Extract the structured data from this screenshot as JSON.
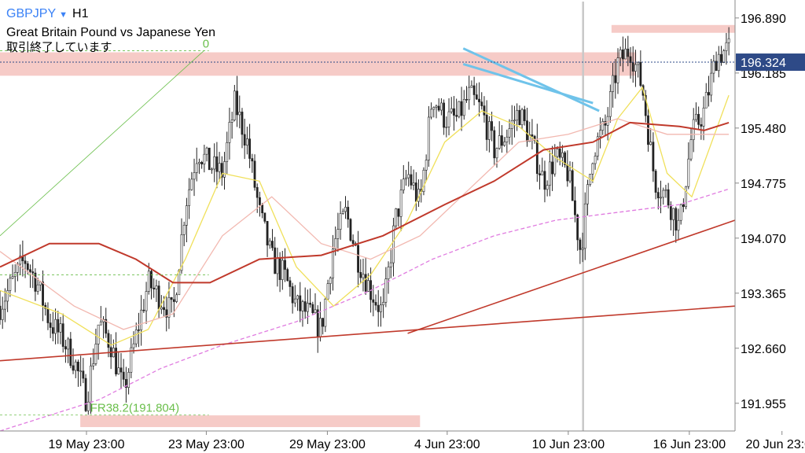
{
  "header": {
    "symbol": "GBPJPY",
    "symbol_menu_icon": "triangle-down-icon",
    "timeframe": "H1",
    "description": "Great Britain Pound vs Japanese Yen",
    "market_status": "取引終了しています"
  },
  "colors": {
    "background": "#ffffff",
    "candle": "#222222",
    "ma_fast": "#f0e05a",
    "ma_mid": "#f2b8b0",
    "ma_slow": "#c0392b",
    "ma_long": "#e07ce0",
    "trendline": "#c0392b",
    "channel": "#6fc3ea",
    "zone": "#f4c2bd",
    "fib": "#6abf4b",
    "price_label": "#2e4a87"
  },
  "chart_data": {
    "type": "candlestick",
    "ylim": [
      191.6,
      197.1
    ],
    "y_ticks": [
      "196.890",
      "196.185",
      "195.480",
      "194.775",
      "194.070",
      "193.365",
      "192.660",
      "191.955"
    ],
    "x_ticks": [
      "19 May 23:00",
      "23 May 23:00",
      "29 May 23:00",
      "4 Jun 23:00",
      "10 Jun 23:00",
      "16 Jun 23:00",
      "20 Jun 23:00"
    ],
    "current_price": "196.324",
    "close_path": [
      [
        0,
        193.2
      ],
      [
        2,
        193.8
      ],
      [
        3,
        193.5
      ],
      [
        4,
        193.0
      ],
      [
        5,
        192.8
      ],
      [
        6,
        192.5
      ],
      [
        7,
        192.0
      ],
      [
        8,
        193.0
      ],
      [
        9,
        192.7
      ],
      [
        10,
        192.1
      ],
      [
        11,
        192.8
      ],
      [
        12,
        193.5
      ],
      [
        13,
        193.3
      ],
      [
        14,
        193.1
      ],
      [
        15,
        194.5
      ],
      [
        16,
        195.2
      ],
      [
        17,
        195.0
      ],
      [
        18,
        194.9
      ],
      [
        19,
        195.8
      ],
      [
        20,
        195.3
      ],
      [
        21,
        194.4
      ],
      [
        22,
        193.8
      ],
      [
        23,
        193.6
      ],
      [
        24,
        193.2
      ],
      [
        25,
        193.1
      ],
      [
        26,
        192.9
      ],
      [
        27,
        194.0
      ],
      [
        28,
        194.4
      ],
      [
        29,
        193.8
      ],
      [
        30,
        193.4
      ],
      [
        31,
        193.1
      ],
      [
        32,
        194.3
      ],
      [
        33,
        194.9
      ],
      [
        34,
        194.5
      ],
      [
        35,
        195.9
      ],
      [
        36,
        195.6
      ],
      [
        37,
        195.6
      ],
      [
        38,
        195.9
      ],
      [
        39,
        195.7
      ],
      [
        40,
        195.2
      ],
      [
        41,
        195.4
      ],
      [
        42,
        195.7
      ],
      [
        43,
        195.3
      ],
      [
        44,
        194.8
      ],
      [
        45,
        195.1
      ],
      [
        46,
        194.9
      ],
      [
        47,
        193.9
      ],
      [
        48,
        195.2
      ],
      [
        49,
        195.5
      ],
      [
        50,
        196.3
      ],
      [
        51,
        196.5
      ],
      [
        52,
        196.0
      ],
      [
        53,
        194.8
      ],
      [
        54,
        194.6
      ],
      [
        55,
        194.2
      ],
      [
        56,
        195.4
      ],
      [
        57,
        195.7
      ],
      [
        58,
        196.4
      ],
      [
        59,
        196.5
      ]
    ],
    "moving_averages": [
      {
        "key": "ma_fast",
        "values": [
          [
            0,
            193.4
          ],
          [
            5,
            193.1
          ],
          [
            9,
            192.7
          ],
          [
            12,
            192.9
          ],
          [
            15,
            193.8
          ],
          [
            18,
            194.9
          ],
          [
            21,
            194.8
          ],
          [
            24,
            193.7
          ],
          [
            27,
            193.2
          ],
          [
            30,
            193.6
          ],
          [
            33,
            194.3
          ],
          [
            36,
            195.3
          ],
          [
            39,
            195.7
          ],
          [
            42,
            195.5
          ],
          [
            45,
            195.1
          ],
          [
            48,
            194.8
          ],
          [
            50,
            195.6
          ],
          [
            52,
            196.0
          ],
          [
            54,
            194.9
          ],
          [
            56,
            194.6
          ],
          [
            59,
            195.9
          ]
        ]
      },
      {
        "key": "ma_mid",
        "values": [
          [
            0,
            193.9
          ],
          [
            6,
            193.2
          ],
          [
            10,
            192.9
          ],
          [
            14,
            193.1
          ],
          [
            18,
            194.1
          ],
          [
            22,
            194.6
          ],
          [
            26,
            194.0
          ],
          [
            30,
            193.8
          ],
          [
            34,
            194.1
          ],
          [
            38,
            194.7
          ],
          [
            42,
            195.3
          ],
          [
            46,
            195.4
          ],
          [
            50,
            195.6
          ],
          [
            54,
            195.4
          ],
          [
            59,
            195.4
          ]
        ]
      },
      {
        "key": "ma_slow",
        "values": [
          [
            0,
            193.7
          ],
          [
            4,
            194.0
          ],
          [
            8,
            194.0
          ],
          [
            11,
            193.8
          ],
          [
            14,
            193.5
          ],
          [
            17,
            193.5
          ],
          [
            21,
            193.8
          ],
          [
            26,
            193.85
          ],
          [
            31,
            194.1
          ],
          [
            36,
            194.5
          ],
          [
            40,
            194.8
          ],
          [
            44,
            195.2
          ],
          [
            48,
            195.3
          ],
          [
            51,
            195.55
          ],
          [
            55,
            195.5
          ],
          [
            57,
            195.45
          ],
          [
            59,
            195.55
          ]
        ]
      },
      {
        "key": "ma_long",
        "values": [
          [
            0,
            191.6
          ],
          [
            8,
            192.0
          ],
          [
            13,
            192.4
          ],
          [
            18,
            192.7
          ],
          [
            24,
            193.0
          ],
          [
            30,
            193.4
          ],
          [
            35,
            193.8
          ],
          [
            40,
            194.1
          ],
          [
            45,
            194.3
          ],
          [
            50,
            194.4
          ],
          [
            55,
            194.5
          ],
          [
            59,
            194.7
          ]
        ]
      }
    ],
    "trendlines": [
      {
        "key": "trendline",
        "from": [
          0,
          192.5
        ],
        "to": [
          59.5,
          193.2
        ]
      },
      {
        "key": "trendline",
        "from": [
          33,
          192.85
        ],
        "to": [
          59.5,
          194.3
        ]
      },
      {
        "key": "channel",
        "from": [
          37.5,
          196.5
        ],
        "to": [
          48.5,
          195.7
        ]
      },
      {
        "key": "channel",
        "from": [
          37.5,
          196.3
        ],
        "to": [
          48.0,
          195.8
        ]
      }
    ],
    "zones": [
      {
        "from": [
          0,
          196.45
        ],
        "to": [
          51.5,
          196.15
        ]
      },
      {
        "from": [
          49.5,
          196.8
        ],
        "to": [
          59.5,
          196.7
        ]
      },
      {
        "from": [
          6.5,
          191.8
        ],
        "to": [
          34,
          191.65
        ]
      }
    ],
    "fibonacci": {
      "levels": [
        {
          "label": "0",
          "price": 196.47
        },
        {
          "label": "FR38.2(191.804)",
          "price": 191.804
        }
      ],
      "extra_level": 193.6,
      "anchor_from": [
        0,
        194.1
      ],
      "anchor_to": [
        16.5,
        196.47
      ]
    },
    "vertical_separator_x": 47.2
  }
}
